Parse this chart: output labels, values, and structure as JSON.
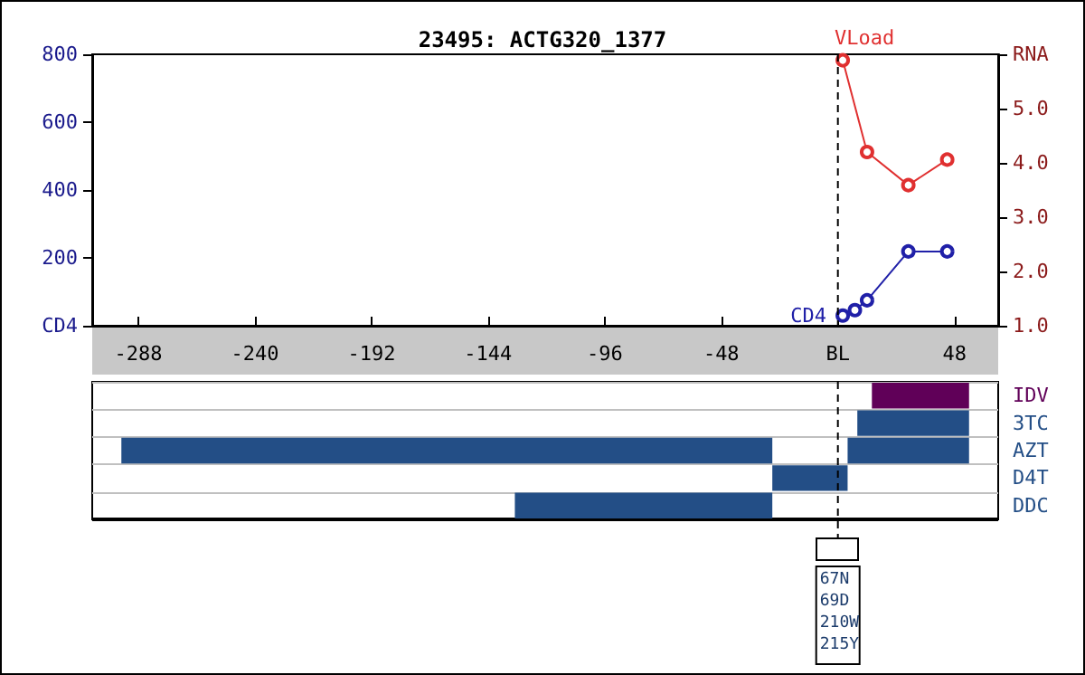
{
  "chart_data": [
    {
      "type": "line",
      "title": "23495: ACTG320_1377",
      "xlim": [
        -307,
        66
      ],
      "xticks": [
        -288,
        -240,
        -192,
        -144,
        -96,
        -48,
        {
          "value": 0,
          "label": "BL"
        },
        48
      ],
      "ylim": [
        0,
        800
      ],
      "yticks": [
        {
          "value": 0,
          "label": "CD4"
        },
        200,
        400,
        600,
        800
      ],
      "y2lim": [
        1,
        6
      ],
      "y2ticks": [
        {
          "value": 1,
          "label": "1.0"
        },
        {
          "value": 2,
          "label": "2.0"
        },
        {
          "value": 3,
          "label": "3.0"
        },
        {
          "value": 4,
          "label": "4.0"
        },
        {
          "value": 5,
          "label": "5.0"
        },
        {
          "value": 6,
          "label": "RNA"
        }
      ],
      "marker": "circle",
      "grid": false,
      "series": [
        {
          "name": "CD4",
          "color": "#2020a8",
          "x": [
            2,
            7,
            12,
            29,
            45
          ],
          "values": [
            30,
            46,
            75,
            219,
            219
          ]
        },
        {
          "name": "VLoad",
          "color": "#e03030",
          "axis": "y2",
          "x": [
            2,
            12,
            29,
            45
          ],
          "values": [
            5.89,
            4.2,
            3.59,
            4.06
          ]
        }
      ],
      "ref_lines": [
        {
          "axis": "x",
          "value": 0,
          "color": "#000000",
          "line_style": "dashed"
        }
      ]
    },
    {
      "type": "bar",
      "orientation": "horizontal",
      "xlim": [
        -307,
        66
      ],
      "tick_labels": "y",
      "grid": "y",
      "categories": [
        "IDV",
        "3TC",
        "AZT",
        "D4T",
        "DDC"
      ],
      "series": [
        {
          "colors": [
            "#600058",
            "#234e86",
            "#234e86",
            "#234e86",
            "#234e86"
          ],
          "base": [
            14,
            8,
            -295,
            -27,
            -133
          ],
          "values": [
            40,
            46,
            268,
            31,
            106
          ]
        },
        {
          "color": "#234e86",
          "base": [
            null,
            null,
            4,
            null,
            null
          ],
          "values": [
            null,
            null,
            50,
            null,
            null
          ]
        }
      ],
      "ref_lines": [
        {
          "axis": "x",
          "value": 0,
          "color": "#000000",
          "line_style": "dashed"
        }
      ],
      "annotations": [
        "67N",
        "69D",
        "210W",
        "215Y"
      ]
    }
  ]
}
